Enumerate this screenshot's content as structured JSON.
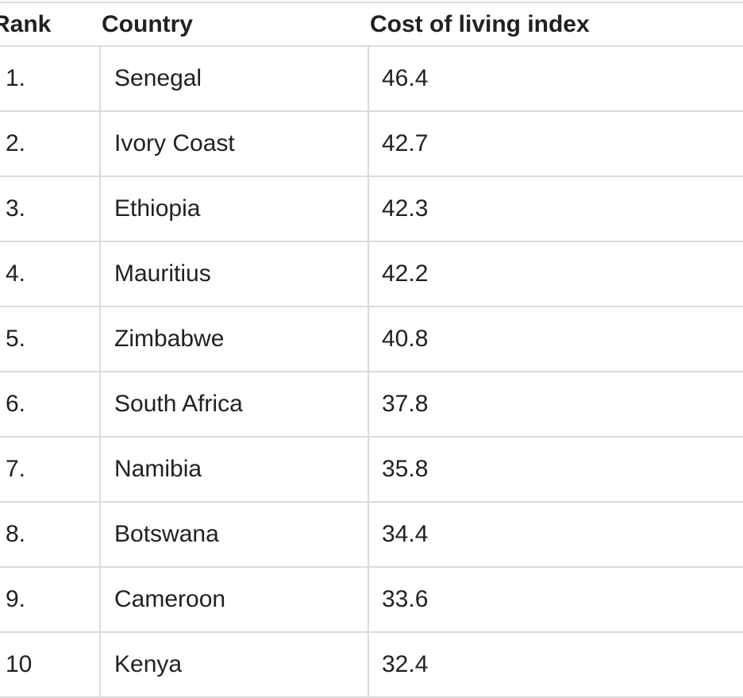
{
  "table": {
    "headers": {
      "rank": "Rank",
      "country": "Country",
      "index": "Cost of living index"
    },
    "rows": [
      {
        "rank": "1.",
        "country": "Senegal",
        "index": "46.4"
      },
      {
        "rank": "2.",
        "country": "Ivory Coast",
        "index": "42.7"
      },
      {
        "rank": "3.",
        "country": "Ethiopia",
        "index": "42.3"
      },
      {
        "rank": "4.",
        "country": "Mauritius",
        "index": "42.2"
      },
      {
        "rank": "5.",
        "country": "Zimbabwe",
        "index": "40.8"
      },
      {
        "rank": "6.",
        "country": "South Africa",
        "index": "37.8"
      },
      {
        "rank": "7.",
        "country": "Namibia",
        "index": "35.8"
      },
      {
        "rank": "8.",
        "country": "Botswana",
        "index": "34.4"
      },
      {
        "rank": "9.",
        "country": "Cameroon",
        "index": "33.6"
      },
      {
        "rank": "10",
        "country": "Kenya",
        "index": "32.4"
      }
    ]
  }
}
